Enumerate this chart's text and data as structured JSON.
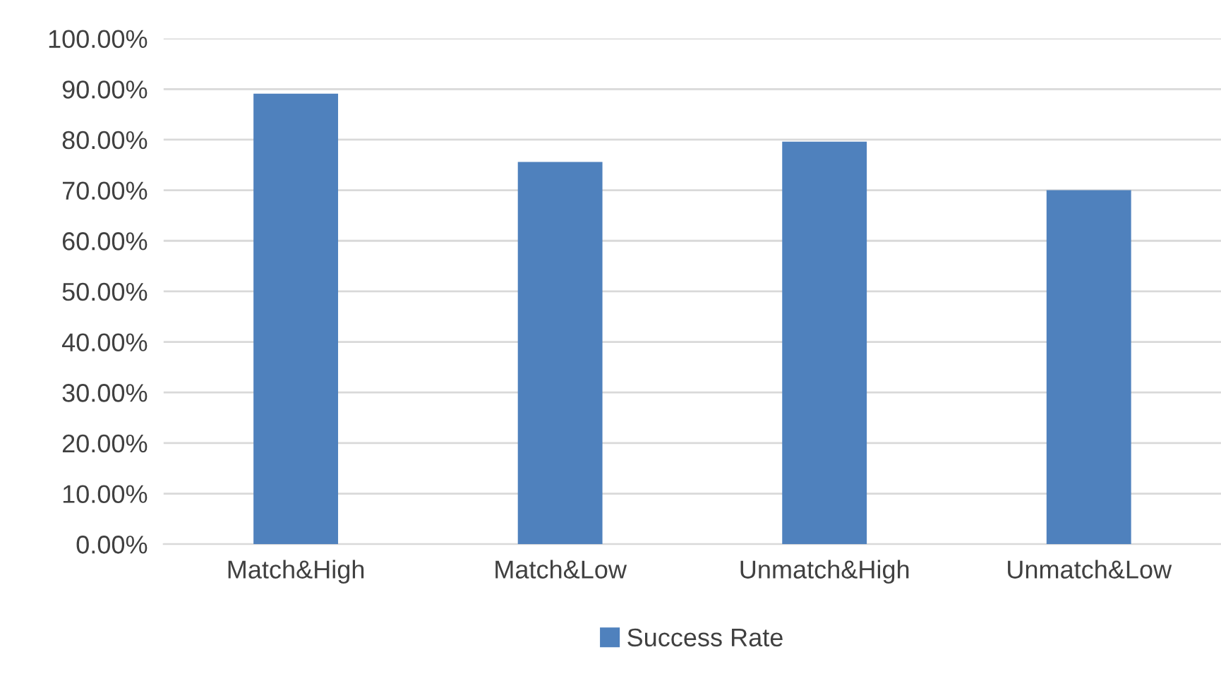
{
  "chart_data": {
    "type": "bar",
    "categories": [
      "Match&High",
      "Match&Low",
      "Unmatch&High",
      "Unmatch&Low"
    ],
    "series": [
      {
        "name": "Success Rate",
        "color": "#4f81bd",
        "values": [
          89.1,
          75.6,
          79.6,
          70.0
        ]
      }
    ],
    "ylim": [
      0,
      100
    ],
    "yticks": [
      {
        "value": 0,
        "label": "0.00%"
      },
      {
        "value": 10,
        "label": "10.00%"
      },
      {
        "value": 20,
        "label": "20.00%"
      },
      {
        "value": 30,
        "label": "30.00%"
      },
      {
        "value": 40,
        "label": "40.00%"
      },
      {
        "value": 50,
        "label": "50.00%"
      },
      {
        "value": 60,
        "label": "60.00%"
      },
      {
        "value": 70,
        "label": "70.00%"
      },
      {
        "value": 80,
        "label": "80.00%"
      },
      {
        "value": 90,
        "label": "90.00%"
      },
      {
        "value": 100,
        "label": "100.00%"
      }
    ],
    "grid": "y",
    "legend": "bottom"
  }
}
